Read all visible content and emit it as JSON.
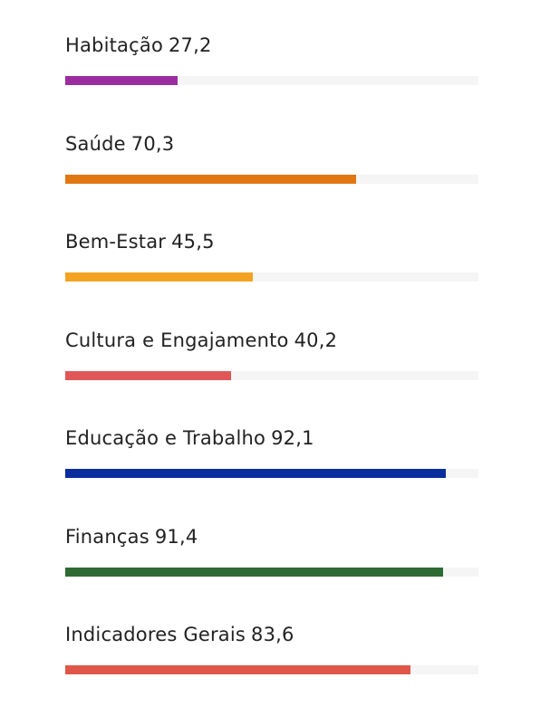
{
  "chart_data": {
    "type": "bar",
    "orientation": "horizontal",
    "categories": [
      "Habitação",
      "Saúde",
      "Bem-Estar",
      "Cultura e Engajamento",
      "Educação e Trabalho",
      "Finanças",
      "Indicadores Gerais"
    ],
    "values": [
      "27,2",
      "70,3",
      "45,5",
      "40,2",
      "92,1",
      "91,4",
      "83,6"
    ],
    "numeric_values": [
      27.2,
      70.3,
      45.5,
      40.2,
      92.1,
      91.4,
      83.6
    ],
    "xlim": [
      0,
      100
    ],
    "colors": [
      "#9b2d9e",
      "#e07713",
      "#f4a321",
      "#e05757",
      "#0a2d9e",
      "#2e6a33",
      "#e0574a"
    ],
    "track_color": "#f5f5f5",
    "grid": false
  }
}
